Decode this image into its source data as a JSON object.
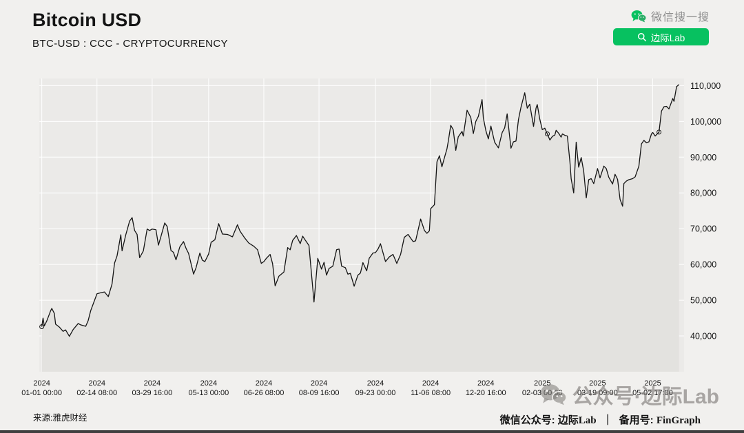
{
  "header": {
    "title": "Bitcoin USD",
    "subtitle": "BTC-USD : CCC - CRYPTOCURRENCY",
    "wechat_search_label": "微信搜一搜",
    "lab_button_label": "边际Lab"
  },
  "colors": {
    "wechat_green": "#07c160",
    "page_bg": "#f1f0ee",
    "plot_bg": "#ebeae8",
    "grid": "#ffffff",
    "line": "#141414",
    "area_fill": "#e3e2df"
  },
  "chart_data": {
    "type": "area",
    "title": "Bitcoin USD",
    "subtitle": "BTC-USD : CCC - CRYPTOCURRENCY",
    "source": "雅虎财经",
    "x_domain": [
      "2023-12-30",
      "2025-05-27"
    ],
    "ylim": [
      30000,
      112000
    ],
    "y_axis_side": "right",
    "grid": true,
    "legend": false,
    "x_ticks": [
      {
        "date": "2024-01-01",
        "line1": "2024",
        "line2": "01-01 00:00"
      },
      {
        "date": "2024-02-14",
        "line1": "2024",
        "line2": "02-14 08:00"
      },
      {
        "date": "2024-03-29",
        "line1": "2024",
        "line2": "03-29 16:00"
      },
      {
        "date": "2024-05-13",
        "line1": "2024",
        "line2": "05-13 00:00"
      },
      {
        "date": "2024-06-26",
        "line1": "2024",
        "line2": "06-26 08:00"
      },
      {
        "date": "2024-08-09",
        "line1": "2024",
        "line2": "08-09 16:00"
      },
      {
        "date": "2024-09-23",
        "line1": "2024",
        "line2": "09-23 00:00"
      },
      {
        "date": "2024-11-06",
        "line1": "2024",
        "line2": "11-06 08:00"
      },
      {
        "date": "2024-12-20",
        "line1": "2024",
        "line2": "12-20 16:00"
      },
      {
        "date": "2025-02-03",
        "line1": "2025",
        "line2": "02-03 00:00"
      },
      {
        "date": "2025-03-19",
        "line1": "2025",
        "line2": "03-19 09:00"
      },
      {
        "date": "2025-05-02",
        "line1": "2025",
        "line2": "05-02 17:00"
      }
    ],
    "y_ticks": [
      {
        "value": 40000,
        "label": "40,000"
      },
      {
        "value": 50000,
        "label": "50,000"
      },
      {
        "value": 60000,
        "label": "60,000"
      },
      {
        "value": 70000,
        "label": "70,000"
      },
      {
        "value": 80000,
        "label": "80,000"
      },
      {
        "value": 90000,
        "label": "90,000"
      },
      {
        "value": 100000,
        "label": "100,000"
      },
      {
        "value": 110000,
        "label": "110,000"
      }
    ],
    "series": [
      {
        "name": "BTC-USD",
        "points": [
          [
            "2024-01-01",
            42600
          ],
          [
            "2024-01-02",
            45000
          ],
          [
            "2024-01-03",
            42800
          ],
          [
            "2024-01-05",
            44200
          ],
          [
            "2024-01-08",
            47000
          ],
          [
            "2024-01-09",
            47700
          ],
          [
            "2024-01-11",
            46300
          ],
          [
            "2024-01-12",
            43300
          ],
          [
            "2024-01-15",
            42500
          ],
          [
            "2024-01-18",
            41300
          ],
          [
            "2024-01-20",
            41700
          ],
          [
            "2024-01-23",
            39900
          ],
          [
            "2024-01-26",
            41800
          ],
          [
            "2024-01-30",
            43500
          ],
          [
            "2024-02-01",
            43100
          ],
          [
            "2024-02-05",
            42700
          ],
          [
            "2024-02-07",
            44300
          ],
          [
            "2024-02-09",
            47100
          ],
          [
            "2024-02-12",
            49900
          ],
          [
            "2024-02-14",
            51800
          ],
          [
            "2024-02-17",
            52100
          ],
          [
            "2024-02-20",
            52300
          ],
          [
            "2024-02-23",
            51000
          ],
          [
            "2024-02-26",
            54500
          ],
          [
            "2024-02-28",
            60400
          ],
          [
            "2024-03-01",
            62400
          ],
          [
            "2024-03-04",
            68300
          ],
          [
            "2024-03-05",
            63800
          ],
          [
            "2024-03-08",
            68300
          ],
          [
            "2024-03-11",
            72100
          ],
          [
            "2024-03-13",
            73100
          ],
          [
            "2024-03-15",
            69500
          ],
          [
            "2024-03-17",
            68400
          ],
          [
            "2024-03-19",
            61900
          ],
          [
            "2024-03-22",
            63800
          ],
          [
            "2024-03-25",
            69900
          ],
          [
            "2024-03-27",
            69500
          ],
          [
            "2024-03-29",
            69900
          ],
          [
            "2024-04-01",
            69700
          ],
          [
            "2024-04-03",
            65400
          ],
          [
            "2024-04-05",
            67800
          ],
          [
            "2024-04-08",
            71600
          ],
          [
            "2024-04-10",
            70600
          ],
          [
            "2024-04-13",
            63900
          ],
          [
            "2024-04-15",
            63400
          ],
          [
            "2024-04-17",
            61300
          ],
          [
            "2024-04-20",
            64900
          ],
          [
            "2024-04-23",
            66400
          ],
          [
            "2024-04-25",
            64500
          ],
          [
            "2024-04-27",
            63100
          ],
          [
            "2024-05-01",
            57300
          ],
          [
            "2024-05-03",
            59100
          ],
          [
            "2024-05-06",
            63200
          ],
          [
            "2024-05-08",
            61200
          ],
          [
            "2024-05-10",
            60800
          ],
          [
            "2024-05-13",
            62900
          ],
          [
            "2024-05-15",
            66200
          ],
          [
            "2024-05-18",
            66900
          ],
          [
            "2024-05-21",
            71400
          ],
          [
            "2024-05-24",
            68500
          ],
          [
            "2024-05-28",
            68400
          ],
          [
            "2024-06-01",
            67700
          ],
          [
            "2024-06-05",
            71100
          ],
          [
            "2024-06-07",
            69300
          ],
          [
            "2024-06-11",
            67300
          ],
          [
            "2024-06-14",
            66000
          ],
          [
            "2024-06-18",
            65100
          ],
          [
            "2024-06-21",
            64100
          ],
          [
            "2024-06-24",
            60300
          ],
          [
            "2024-06-26",
            60800
          ],
          [
            "2024-06-28",
            61700
          ],
          [
            "2024-07-01",
            62800
          ],
          [
            "2024-07-03",
            60200
          ],
          [
            "2024-07-05",
            54000
          ],
          [
            "2024-07-08",
            56700
          ],
          [
            "2024-07-12",
            57900
          ],
          [
            "2024-07-15",
            64700
          ],
          [
            "2024-07-17",
            64100
          ],
          [
            "2024-07-19",
            66700
          ],
          [
            "2024-07-22",
            68100
          ],
          [
            "2024-07-25",
            65800
          ],
          [
            "2024-07-27",
            67900
          ],
          [
            "2024-07-29",
            66800
          ],
          [
            "2024-08-01",
            65300
          ],
          [
            "2024-08-02",
            61400
          ],
          [
            "2024-08-05",
            49500
          ],
          [
            "2024-08-08",
            61700
          ],
          [
            "2024-08-11",
            58700
          ],
          [
            "2024-08-13",
            60600
          ],
          [
            "2024-08-15",
            57000
          ],
          [
            "2024-08-17",
            58900
          ],
          [
            "2024-08-20",
            59500
          ],
          [
            "2024-08-23",
            64100
          ],
          [
            "2024-08-25",
            64300
          ],
          [
            "2024-08-27",
            59500
          ],
          [
            "2024-08-30",
            59100
          ],
          [
            "2024-09-01",
            57300
          ],
          [
            "2024-09-03",
            57500
          ],
          [
            "2024-09-06",
            53900
          ],
          [
            "2024-09-09",
            57000
          ],
          [
            "2024-09-11",
            57600
          ],
          [
            "2024-09-13",
            60500
          ],
          [
            "2024-09-16",
            58200
          ],
          [
            "2024-09-18",
            61700
          ],
          [
            "2024-09-21",
            63200
          ],
          [
            "2024-09-23",
            63300
          ],
          [
            "2024-09-25",
            64300
          ],
          [
            "2024-09-27",
            65800
          ],
          [
            "2024-10-01",
            60800
          ],
          [
            "2024-10-04",
            62100
          ],
          [
            "2024-10-07",
            62800
          ],
          [
            "2024-10-10",
            60300
          ],
          [
            "2024-10-13",
            62800
          ],
          [
            "2024-10-16",
            67600
          ],
          [
            "2024-10-19",
            68400
          ],
          [
            "2024-10-21",
            67400
          ],
          [
            "2024-10-23",
            66400
          ],
          [
            "2024-10-25",
            66600
          ],
          [
            "2024-10-29",
            72700
          ],
          [
            "2024-11-01",
            69500
          ],
          [
            "2024-11-03",
            68700
          ],
          [
            "2024-11-05",
            69400
          ],
          [
            "2024-11-06",
            75600
          ],
          [
            "2024-11-09",
            76700
          ],
          [
            "2024-11-11",
            88700
          ],
          [
            "2024-11-13",
            90400
          ],
          [
            "2024-11-15",
            87300
          ],
          [
            "2024-11-17",
            89900
          ],
          [
            "2024-11-19",
            92300
          ],
          [
            "2024-11-20",
            94300
          ],
          [
            "2024-11-22",
            98900
          ],
          [
            "2024-11-24",
            97700
          ],
          [
            "2024-11-26",
            91900
          ],
          [
            "2024-11-28",
            95700
          ],
          [
            "2024-12-01",
            97200
          ],
          [
            "2024-12-02",
            95900
          ],
          [
            "2024-12-05",
            103100
          ],
          [
            "2024-12-08",
            101100
          ],
          [
            "2024-12-10",
            96600
          ],
          [
            "2024-12-12",
            100000
          ],
          [
            "2024-12-14",
            101400
          ],
          [
            "2024-12-17",
            106100
          ],
          [
            "2024-12-18",
            101000
          ],
          [
            "2024-12-20",
            97400
          ],
          [
            "2024-12-22",
            95100
          ],
          [
            "2024-12-24",
            98700
          ],
          [
            "2024-12-27",
            94200
          ],
          [
            "2024-12-30",
            92600
          ],
          [
            "2025-01-02",
            96900
          ],
          [
            "2025-01-04",
            98200
          ],
          [
            "2025-01-06",
            102100
          ],
          [
            "2025-01-09",
            92500
          ],
          [
            "2025-01-11",
            94300
          ],
          [
            "2025-01-13",
            94500
          ],
          [
            "2025-01-15",
            100500
          ],
          [
            "2025-01-17",
            104000
          ],
          [
            "2025-01-20",
            108000
          ],
          [
            "2025-01-22",
            103700
          ],
          [
            "2025-01-24",
            104800
          ],
          [
            "2025-01-27",
            98600
          ],
          [
            "2025-01-29",
            103700
          ],
          [
            "2025-01-30",
            104700
          ],
          [
            "2025-02-01",
            100600
          ],
          [
            "2025-02-03",
            97700
          ],
          [
            "2025-02-05",
            98100
          ],
          [
            "2025-02-07",
            96500
          ],
          [
            "2025-02-09",
            94800
          ],
          [
            "2025-02-11",
            95800
          ],
          [
            "2025-02-13",
            96200
          ],
          [
            "2025-02-14",
            97500
          ],
          [
            "2025-02-16",
            96700
          ],
          [
            "2025-02-18",
            95600
          ],
          [
            "2025-02-19",
            96500
          ],
          [
            "2025-02-21",
            96100
          ],
          [
            "2025-02-23",
            95900
          ],
          [
            "2025-02-25",
            88700
          ],
          [
            "2025-02-26",
            84000
          ],
          [
            "2025-02-28",
            80000
          ],
          [
            "2025-03-02",
            94200
          ],
          [
            "2025-03-04",
            87200
          ],
          [
            "2025-03-06",
            89900
          ],
          [
            "2025-03-08",
            86100
          ],
          [
            "2025-03-10",
            78600
          ],
          [
            "2025-03-12",
            83700
          ],
          [
            "2025-03-14",
            84000
          ],
          [
            "2025-03-16",
            82600
          ],
          [
            "2025-03-19",
            86800
          ],
          [
            "2025-03-21",
            84200
          ],
          [
            "2025-03-24",
            87500
          ],
          [
            "2025-03-26",
            86800
          ],
          [
            "2025-03-28",
            84400
          ],
          [
            "2025-03-31",
            82500
          ],
          [
            "2025-04-02",
            85200
          ],
          [
            "2025-04-04",
            83800
          ],
          [
            "2025-04-06",
            78200
          ],
          [
            "2025-04-08",
            76300
          ],
          [
            "2025-04-09",
            82600
          ],
          [
            "2025-04-11",
            83300
          ],
          [
            "2025-04-13",
            83700
          ],
          [
            "2025-04-16",
            84000
          ],
          [
            "2025-04-18",
            84500
          ],
          [
            "2025-04-21",
            87500
          ],
          [
            "2025-04-23",
            93700
          ],
          [
            "2025-04-25",
            94700
          ],
          [
            "2025-04-27",
            94000
          ],
          [
            "2025-04-29",
            94300
          ],
          [
            "2025-05-01",
            96500
          ],
          [
            "2025-05-02",
            96900
          ],
          [
            "2025-05-04",
            95900
          ],
          [
            "2025-05-07",
            97000
          ],
          [
            "2025-05-09",
            102900
          ],
          [
            "2025-05-11",
            104100
          ],
          [
            "2025-05-13",
            104200
          ],
          [
            "2025-05-15",
            103500
          ],
          [
            "2025-05-18",
            106400
          ],
          [
            "2025-05-19",
            105600
          ],
          [
            "2025-05-21",
            109700
          ],
          [
            "2025-05-23",
            110300
          ]
        ]
      }
    ],
    "gap_markers": [
      [
        "2024-01-01",
        42600
      ],
      [
        "2025-02-07",
        96500
      ],
      [
        "2025-05-07",
        97000
      ]
    ]
  },
  "watermark": {
    "text": "公众号·边际Lab"
  },
  "footer": {
    "source": "来源:雅虎财经",
    "account_label": "微信公众号: ",
    "account_name": "边际Lab",
    "separator": "｜",
    "backup_label": "备用号: ",
    "backup_name": "FinGraph"
  }
}
